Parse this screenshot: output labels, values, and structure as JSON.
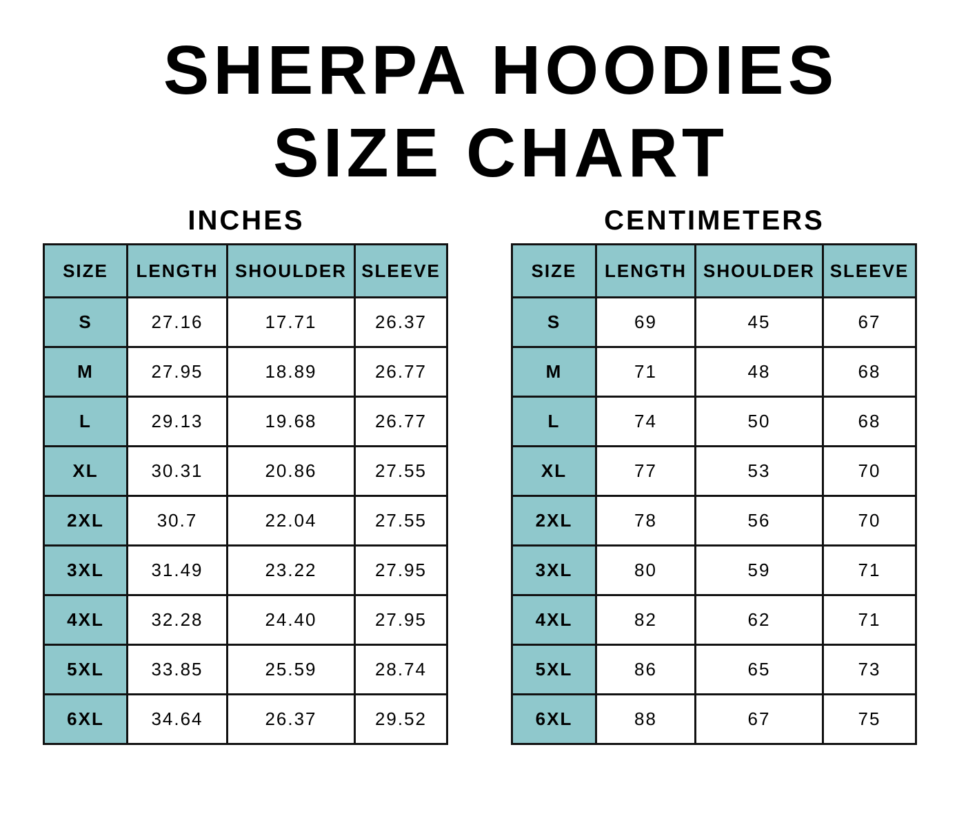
{
  "title_line1": "SHERPA HOODIES",
  "title_line2": "SIZE CHART",
  "accent_color": "#8fc8cc",
  "inches": {
    "label": "INCHES",
    "headers": [
      "SIZE",
      "LENGTH",
      "SHOULDER",
      "SLEEVE"
    ],
    "rows": [
      [
        "S",
        "27.16",
        "17.71",
        "26.37"
      ],
      [
        "M",
        "27.95",
        "18.89",
        "26.77"
      ],
      [
        "L",
        "29.13",
        "19.68",
        "26.77"
      ],
      [
        "XL",
        "30.31",
        "20.86",
        "27.55"
      ],
      [
        "2XL",
        "30.7",
        "22.04",
        "27.55"
      ],
      [
        "3XL",
        "31.49",
        "23.22",
        "27.95"
      ],
      [
        "4XL",
        "32.28",
        "24.40",
        "27.95"
      ],
      [
        "5XL",
        "33.85",
        "25.59",
        "28.74"
      ],
      [
        "6XL",
        "34.64",
        "26.37",
        "29.52"
      ]
    ]
  },
  "centimeters": {
    "label": "CENTIMETERS",
    "headers": [
      "SIZE",
      "LENGTH",
      "SHOULDER",
      "SLEEVE"
    ],
    "rows": [
      [
        "S",
        "69",
        "45",
        "67"
      ],
      [
        "M",
        "71",
        "48",
        "68"
      ],
      [
        "L",
        "74",
        "50",
        "68"
      ],
      [
        "XL",
        "77",
        "53",
        "70"
      ],
      [
        "2XL",
        "78",
        "56",
        "70"
      ],
      [
        "3XL",
        "80",
        "59",
        "71"
      ],
      [
        "4XL",
        "82",
        "62",
        "71"
      ],
      [
        "5XL",
        "86",
        "65",
        "73"
      ],
      [
        "6XL",
        "88",
        "67",
        "75"
      ]
    ]
  }
}
